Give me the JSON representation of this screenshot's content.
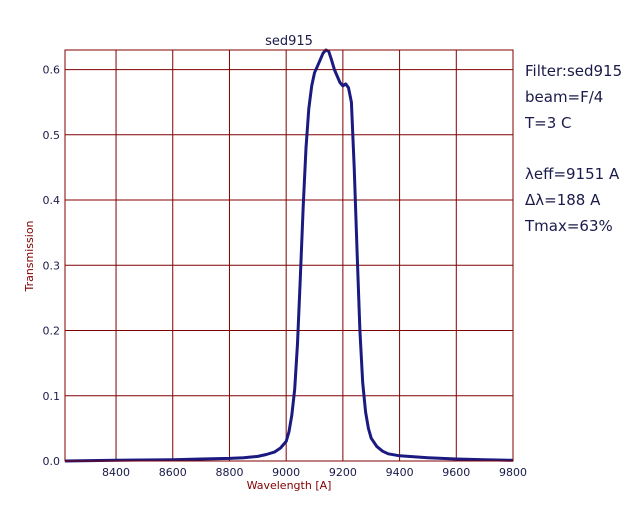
{
  "chart_data": {
    "type": "line",
    "title": "sed915",
    "xlabel": "Wavelength [A]",
    "ylabel": "Transmission",
    "xlim": [
      8220,
      9800
    ],
    "ylim": [
      0,
      0.63
    ],
    "xticks": [
      8400,
      8600,
      8800,
      9000,
      9200,
      9400,
      9600,
      9800
    ],
    "xtick_labels": [
      "8400",
      "8600",
      "8800",
      "9000",
      "9200",
      "9400",
      "9600",
      "9800"
    ],
    "yticks": [
      0.0,
      0.1,
      0.2,
      0.3,
      0.4,
      0.5,
      0.6
    ],
    "ytick_labels": [
      "0.0",
      "0.1",
      "0.2",
      "0.3",
      "0.4",
      "0.5",
      "0.6"
    ],
    "grid": true,
    "series": [
      {
        "name": "",
        "x": [
          8220,
          8400,
          8600,
          8700,
          8800,
          8850,
          8900,
          8930,
          8960,
          8980,
          9000,
          9010,
          9020,
          9030,
          9040,
          9050,
          9060,
          9070,
          9080,
          9090,
          9100,
          9110,
          9120,
          9130,
          9140,
          9150,
          9160,
          9170,
          9180,
          9190,
          9200,
          9210,
          9220,
          9230,
          9240,
          9250,
          9260,
          9270,
          9280,
          9290,
          9300,
          9320,
          9340,
          9360,
          9400,
          9500,
          9600,
          9700,
          9800
        ],
        "y": [
          0.0,
          0.001,
          0.002,
          0.003,
          0.004,
          0.005,
          0.007,
          0.01,
          0.014,
          0.02,
          0.03,
          0.045,
          0.07,
          0.11,
          0.18,
          0.28,
          0.39,
          0.48,
          0.54,
          0.575,
          0.595,
          0.605,
          0.615,
          0.625,
          0.63,
          0.628,
          0.615,
          0.6,
          0.59,
          0.58,
          0.575,
          0.578,
          0.572,
          0.55,
          0.45,
          0.32,
          0.2,
          0.12,
          0.075,
          0.05,
          0.035,
          0.022,
          0.015,
          0.011,
          0.008,
          0.005,
          0.003,
          0.002,
          0.001
        ]
      }
    ],
    "colors": {
      "frame": "#800000",
      "grid": "#800000",
      "line": "#1a1a80",
      "text": "#1a1a4a"
    }
  },
  "info": {
    "filter": "Filter:sed915",
    "beam": "beam=F/4",
    "temp": "T=3 C",
    "leff": "λeff=9151 A",
    "dl": "Δλ=188 A",
    "tmax": "Tmax=63%"
  }
}
